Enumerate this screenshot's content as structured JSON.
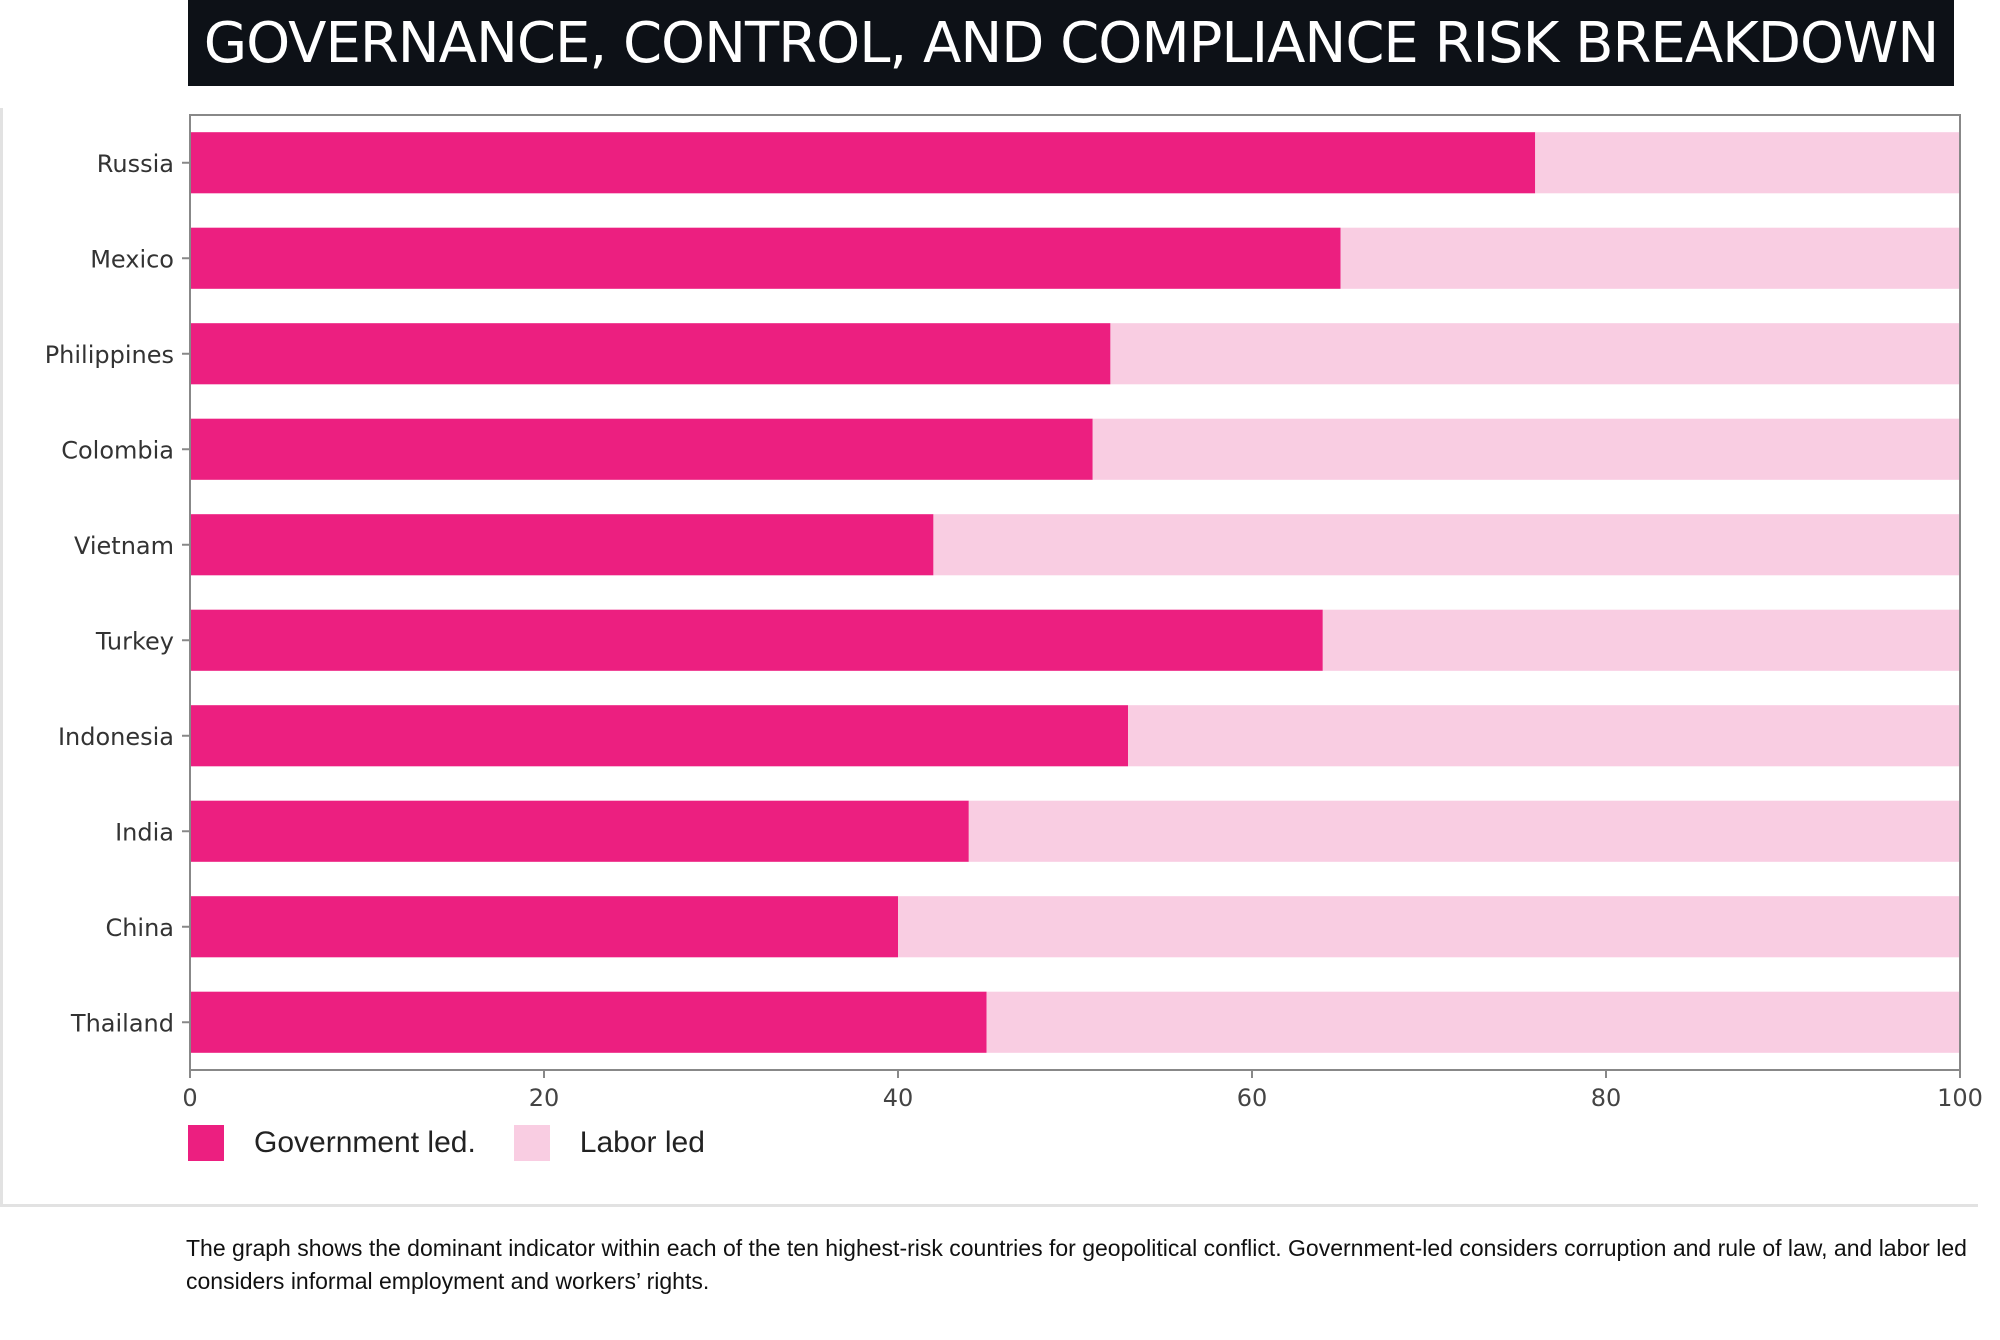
{
  "title": "GOVERNANCE, CONTROL, AND COMPLIANCE RISK BREAKDOWN",
  "caption": "The graph shows the dominant indicator within each of the ten highest-risk countries for geopolitical conflict. Government-led considers corruption and rule of law, and labor led considers informal employment and workers’ rights.",
  "legend": {
    "government_label": "Government led.",
    "labor_label": "Labor led"
  },
  "colors": {
    "government": "#ec1f80",
    "labor": "#f9cde2",
    "axis": "#888888",
    "title_bg": "#0d1117"
  },
  "chart_data": {
    "type": "bar",
    "orientation": "horizontal",
    "stacked": true,
    "categories": [
      "Russia",
      "Mexico",
      "Philippines",
      "Colombia",
      "Vietnam",
      "Turkey",
      "Indonesia",
      "India",
      "China",
      "Thailand"
    ],
    "series": [
      {
        "name": "Government led.",
        "values": [
          76,
          65,
          52,
          51,
          42,
          64,
          53,
          44,
          40,
          45
        ]
      },
      {
        "name": "Labor led",
        "values": [
          24,
          35,
          48,
          49,
          58,
          36,
          47,
          56,
          60,
          55
        ]
      }
    ],
    "xlim": [
      0,
      100
    ],
    "xticks": [
      0,
      20,
      40,
      60,
      80,
      100
    ],
    "grid": false,
    "legend_position": "bottom-left"
  }
}
